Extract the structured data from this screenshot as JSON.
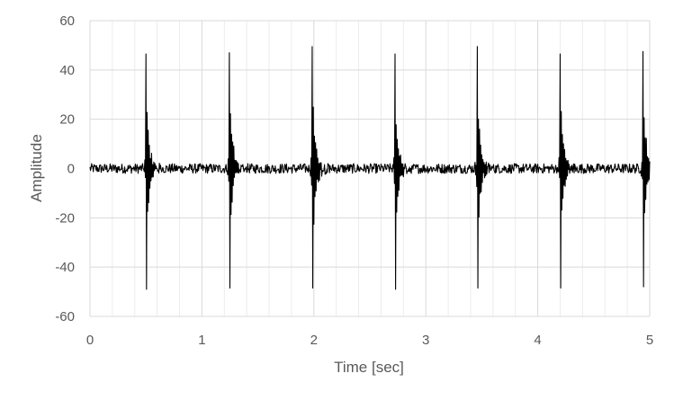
{
  "chart_data": {
    "type": "line",
    "title": "",
    "xlabel": "Time [sec]",
    "ylabel": "Amplitude",
    "xlim": [
      0,
      5
    ],
    "ylim": [
      -60,
      60
    ],
    "xticks": [
      "0",
      "1",
      "2",
      "3",
      "4",
      "5"
    ],
    "yticks": [
      "60",
      "40",
      "20",
      "0",
      "-20",
      "-40",
      "-60"
    ],
    "grid": true,
    "legend": "none",
    "line_color": "#000000",
    "grid_color": "#d9d9d9",
    "minor_grid_color": "#ececec",
    "sample_interval": 0.005,
    "baseline_noise_amplitude": 2,
    "pulses": [
      {
        "t": 0.5,
        "peak_max": 46.5,
        "peak_min": -49
      },
      {
        "t": 1.245,
        "peak_max": 47,
        "peak_min": -48.5
      },
      {
        "t": 1.985,
        "peak_max": 49.5,
        "peak_min": -48.5
      },
      {
        "t": 2.725,
        "peak_max": 46.5,
        "peak_min": -49
      },
      {
        "t": 3.46,
        "peak_max": 49.5,
        "peak_min": -48.5
      },
      {
        "t": 4.2,
        "peak_max": 46.5,
        "peak_min": -48.5
      },
      {
        "t": 4.94,
        "peak_max": 47.5,
        "peak_min": -48
      }
    ]
  }
}
